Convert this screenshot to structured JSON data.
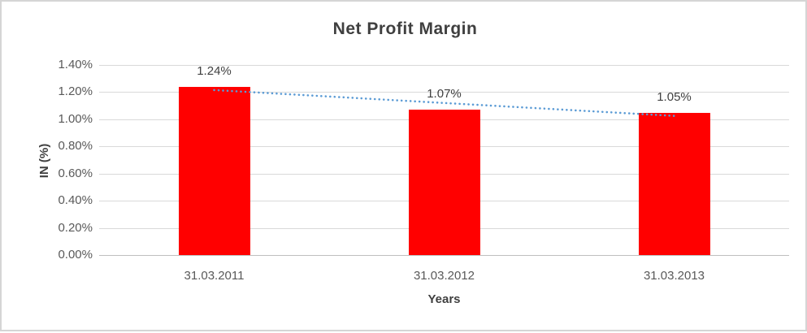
{
  "frame": {
    "border_color": "#d5d5d5",
    "background": "#ffffff"
  },
  "chart_data": {
    "type": "bar",
    "title": "Net Profit Margin",
    "xlabel": "Years",
    "ylabel": "IN (%)",
    "categories": [
      "31.03.2011",
      "31.03.2012",
      "31.03.2013"
    ],
    "values": [
      1.24,
      1.07,
      1.05
    ],
    "data_labels": [
      "1.24%",
      "1.07%",
      "1.05%"
    ],
    "ylim": [
      0,
      1.4
    ],
    "ytick_step": 0.2,
    "ytick_labels": [
      "0.00%",
      "0.20%",
      "0.40%",
      "0.60%",
      "0.80%",
      "1.00%",
      "1.20%",
      "1.40%"
    ],
    "grid": true,
    "legend": "none",
    "bar_color": "#ff0000",
    "gridline_color": "#d9d9d9",
    "axis_line_color": "#bfbfbf",
    "title_color": "#3f3f3f",
    "tick_label_color": "#595959",
    "data_label_color": "#404040",
    "trendline": {
      "type": "linear",
      "style": "dotted",
      "color": "#5b9bd5"
    }
  }
}
